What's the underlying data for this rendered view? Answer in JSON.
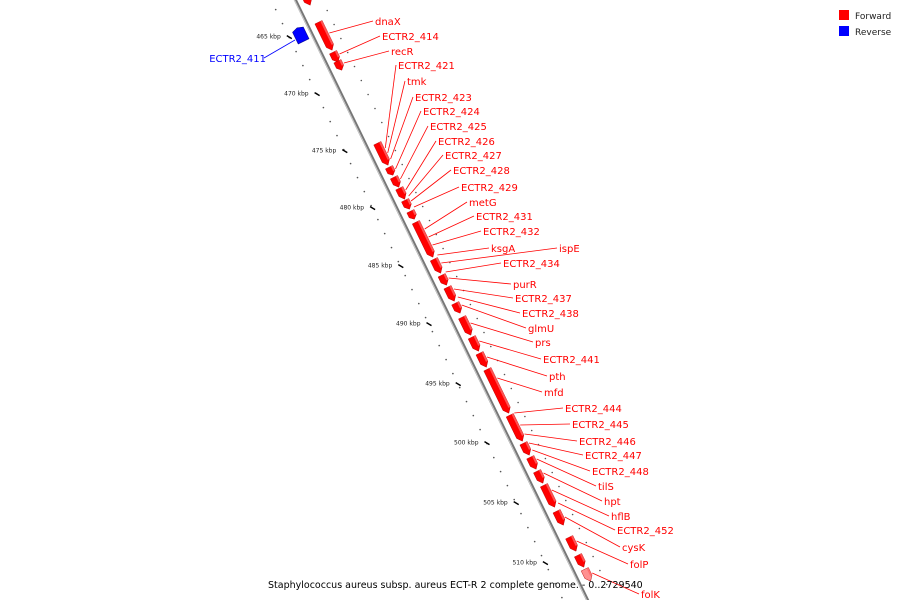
{
  "title": "Staphylococcus aureus subsp. aureus ECT-R 2 complete genome. - 0..2729540",
  "legend": [
    {
      "label": "Forward",
      "color": "#ff0000"
    },
    {
      "label": "Reverse",
      "color": "#0000ff"
    }
  ],
  "colors": {
    "forward": "#ff0000",
    "reverse": "#0000ff",
    "backbone": "#888888",
    "partial": "#ff9090"
  },
  "ticks": [
    "465 kbp",
    "470 kbp",
    "475 kbp",
    "480 kbp",
    "485 kbp",
    "490 kbp",
    "495 kbp",
    "500 kbp",
    "505 kbp",
    "510 kbp"
  ],
  "genes": [
    {
      "label": "ECTR2_411",
      "strand": "reverse"
    },
    {
      "label": "dnaX",
      "strand": "forward"
    },
    {
      "label": "ECTR2_414",
      "strand": "forward"
    },
    {
      "label": "recR",
      "strand": "forward"
    },
    {
      "label": "ECTR2_421",
      "strand": "forward"
    },
    {
      "label": "tmk",
      "strand": "forward"
    },
    {
      "label": "ECTR2_423",
      "strand": "forward"
    },
    {
      "label": "ECTR2_424",
      "strand": "forward"
    },
    {
      "label": "ECTR2_425",
      "strand": "forward"
    },
    {
      "label": "ECTR2_426",
      "strand": "forward"
    },
    {
      "label": "ECTR2_427",
      "strand": "forward"
    },
    {
      "label": "ECTR2_428",
      "strand": "forward"
    },
    {
      "label": "ECTR2_429",
      "strand": "forward"
    },
    {
      "label": "metG",
      "strand": "forward"
    },
    {
      "label": "ECTR2_431",
      "strand": "forward"
    },
    {
      "label": "ECTR2_432",
      "strand": "forward"
    },
    {
      "label": "ksgA",
      "strand": "forward"
    },
    {
      "label": "ispE",
      "strand": "forward"
    },
    {
      "label": "ECTR2_434",
      "strand": "forward"
    },
    {
      "label": "purR",
      "strand": "forward"
    },
    {
      "label": "ECTR2_437",
      "strand": "forward"
    },
    {
      "label": "ECTR2_438",
      "strand": "forward"
    },
    {
      "label": "glmU",
      "strand": "forward"
    },
    {
      "label": "prs",
      "strand": "forward"
    },
    {
      "label": "ECTR2_441",
      "strand": "forward"
    },
    {
      "label": "pth",
      "strand": "forward"
    },
    {
      "label": "mfd",
      "strand": "forward"
    },
    {
      "label": "ECTR2_444",
      "strand": "forward"
    },
    {
      "label": "ECTR2_445",
      "strand": "forward"
    },
    {
      "label": "ECTR2_446",
      "strand": "forward"
    },
    {
      "label": "ECTR2_447",
      "strand": "forward"
    },
    {
      "label": "ECTR2_448",
      "strand": "forward"
    },
    {
      "label": "tilS",
      "strand": "forward"
    },
    {
      "label": "hpt",
      "strand": "forward"
    },
    {
      "label": "hflB",
      "strand": "forward"
    },
    {
      "label": "ECTR2_452",
      "strand": "forward"
    },
    {
      "label": "cysK",
      "strand": "forward"
    },
    {
      "label": "folP",
      "strand": "forward"
    },
    {
      "label": "folK",
      "strand": "forward"
    }
  ]
}
